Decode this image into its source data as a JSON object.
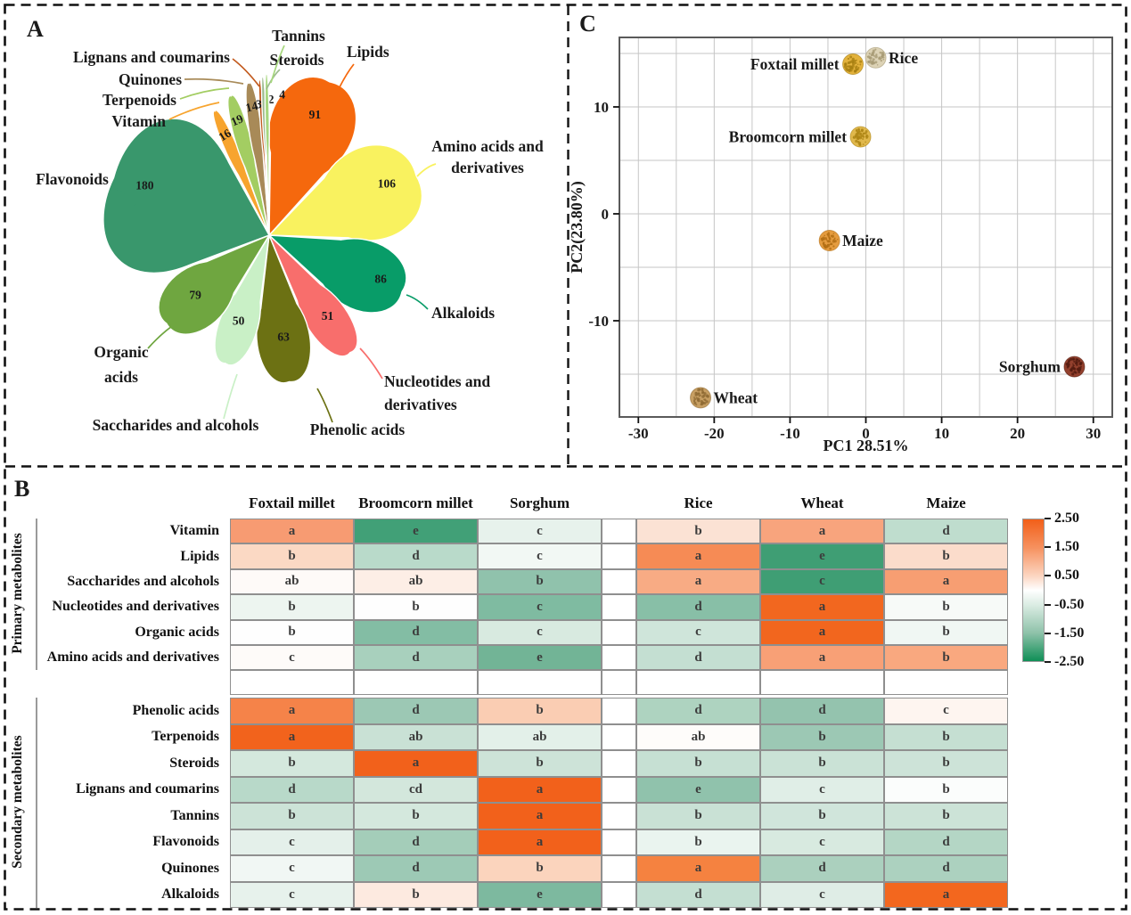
{
  "ui": {
    "panel_labels": {
      "a": "A",
      "b": "B",
      "c": "C"
    }
  },
  "chart_data": [
    {
      "id": "A",
      "type": "pie",
      "variant": "flower-petal-plot",
      "title": "",
      "categories": [
        {
          "name": "Lipids",
          "label_lines": [
            "Lipids"
          ],
          "value": 91,
          "color": "#F5680D"
        },
        {
          "name": "Amino acids and derivatives",
          "label_lines": [
            "Amino acids and",
            "derivatives"
          ],
          "value": 106,
          "color": "#F9F25F"
        },
        {
          "name": "Alkaloids",
          "label_lines": [
            "Alkaloids"
          ],
          "value": 86,
          "color": "#089C68"
        },
        {
          "name": "Nucleotides and derivatives",
          "label_lines": [
            "Nucleotides and",
            "derivatives"
          ],
          "value": 51,
          "color": "#F86E6C"
        },
        {
          "name": "Phenolic acids",
          "label_lines": [
            "Phenolic acids"
          ],
          "value": 63,
          "color": "#6C7113"
        },
        {
          "name": "Saccharides and alcohols",
          "label_lines": [
            "Saccharides and alcohols"
          ],
          "value": 50,
          "color": "#C9F0C6"
        },
        {
          "name": "Organic acids",
          "label_lines": [
            "Organic",
            "acids"
          ],
          "value": 79,
          "color": "#6FA640"
        },
        {
          "name": "Flavonoids",
          "label_lines": [
            "Flavonoids"
          ],
          "value": 180,
          "color": "#39976C"
        },
        {
          "name": "Vitamin",
          "label_lines": [
            "Vitamin"
          ],
          "value": 16,
          "color": "#F7A42E"
        },
        {
          "name": "Terpenoids",
          "label_lines": [
            "Terpenoids"
          ],
          "value": 19,
          "color": "#A3CD62"
        },
        {
          "name": "Quinones",
          "label_lines": [
            "Quinones"
          ],
          "value": 14,
          "color": "#A88A58"
        },
        {
          "name": "Lignans and coumarins",
          "label_lines": [
            "Lignans and coumarins"
          ],
          "value": 3,
          "color": "#C25A1E"
        },
        {
          "name": "Steroids",
          "label_lines": [
            "Steroids"
          ],
          "value": 2,
          "color": "#9DBB8F"
        },
        {
          "name": "Tannins",
          "label_lines": [
            "Tannins"
          ],
          "value": 4,
          "color": "#A6D77D"
        }
      ]
    },
    {
      "id": "B",
      "type": "heatmap",
      "columns": [
        "Foxtail millet",
        "Broomcorn millet",
        "Sorghum",
        "Rice",
        "Wheat",
        "Maize"
      ],
      "row_groups": [
        {
          "label": "Primary metabolites",
          "rows": [
            {
              "label": "Vitamin",
              "cells": [
                {
                  "letter": "a",
                  "color": "#F79B72"
                },
                {
                  "letter": "e",
                  "color": "#41A077"
                },
                {
                  "letter": "c",
                  "color": "#E7F2EC"
                },
                {
                  "letter": "b",
                  "color": "#FBE2D4"
                },
                {
                  "letter": "a",
                  "color": "#F8A47D"
                },
                {
                  "letter": "d",
                  "color": "#BFDDCE"
                }
              ]
            },
            {
              "label": "Lipids",
              "cells": [
                {
                  "letter": "b",
                  "color": "#FBD9C4"
                },
                {
                  "letter": "d",
                  "color": "#B9DACA"
                },
                {
                  "letter": "c",
                  "color": "#F2F8F4"
                },
                {
                  "letter": "a",
                  "color": "#F68B55"
                },
                {
                  "letter": "e",
                  "color": "#3F9E74"
                },
                {
                  "letter": "b",
                  "color": "#FBDCCB"
                }
              ]
            },
            {
              "label": "Saccharides and alcohols",
              "cells": [
                {
                  "letter": "ab",
                  "color": "#FEFAF8"
                },
                {
                  "letter": "ab",
                  "color": "#FDEEE6"
                },
                {
                  "letter": "b",
                  "color": "#90C2AC"
                },
                {
                  "letter": "a",
                  "color": "#F8AB84"
                },
                {
                  "letter": "c",
                  "color": "#3F9E74"
                },
                {
                  "letter": "a",
                  "color": "#F79E72"
                }
              ]
            },
            {
              "label": "Nucleotides and derivatives",
              "cells": [
                {
                  "letter": "b",
                  "color": "#EDF5F0"
                },
                {
                  "letter": "b",
                  "color": "#FEFEFE"
                },
                {
                  "letter": "c",
                  "color": "#7FBBA1"
                },
                {
                  "letter": "d",
                  "color": "#88BFA7"
                },
                {
                  "letter": "a",
                  "color": "#F2671F"
                },
                {
                  "letter": "b",
                  "color": "#F7FAF8"
                }
              ]
            },
            {
              "label": "Organic acids",
              "cells": [
                {
                  "letter": "b",
                  "color": "#FEFEFE"
                },
                {
                  "letter": "d",
                  "color": "#83BDA4"
                },
                {
                  "letter": "c",
                  "color": "#D8EAE0"
                },
                {
                  "letter": "c",
                  "color": "#CFE5DA"
                },
                {
                  "letter": "a",
                  "color": "#F2661E"
                },
                {
                  "letter": "b",
                  "color": "#F0F7F3"
                }
              ]
            },
            {
              "label": "Amino acids and derivatives",
              "cells": [
                {
                  "letter": "c",
                  "color": "#FEFBF9"
                },
                {
                  "letter": "d",
                  "color": "#A8D0BD"
                },
                {
                  "letter": "e",
                  "color": "#72B496"
                },
                {
                  "letter": "d",
                  "color": "#C4DFD2"
                },
                {
                  "letter": "a",
                  "color": "#F8A076"
                },
                {
                  "letter": "b",
                  "color": "#F9A87F"
                }
              ]
            }
          ]
        },
        {
          "label": "Secondary metabolites",
          "rows": [
            {
              "label": "Phenolic acids",
              "cells": [
                {
                  "letter": "a",
                  "color": "#F58349"
                },
                {
                  "letter": "d",
                  "color": "#9CC8B4"
                },
                {
                  "letter": "b",
                  "color": "#FACDB3"
                },
                {
                  "letter": "d",
                  "color": "#AED3C0"
                },
                {
                  "letter": "d",
                  "color": "#94C3AE"
                },
                {
                  "letter": "c",
                  "color": "#FEF5F0"
                }
              ]
            },
            {
              "label": "Terpenoids",
              "cells": [
                {
                  "letter": "a",
                  "color": "#F2631C"
                },
                {
                  "letter": "ab",
                  "color": "#C9E1D5"
                },
                {
                  "letter": "ab",
                  "color": "#E3F0E9"
                },
                {
                  "letter": "ab",
                  "color": "#FEFCFA"
                },
                {
                  "letter": "b",
                  "color": "#9CC8B4"
                },
                {
                  "letter": "b",
                  "color": "#C5DFD2"
                }
              ]
            },
            {
              "label": "Steroids",
              "cells": [
                {
                  "letter": "b",
                  "color": "#D4E8DD"
                },
                {
                  "letter": "a",
                  "color": "#F2611B"
                },
                {
                  "letter": "b",
                  "color": "#CDE3D8"
                },
                {
                  "letter": "b",
                  "color": "#C6E0D3"
                },
                {
                  "letter": "b",
                  "color": "#CAE2D6"
                },
                {
                  "letter": "b",
                  "color": "#CDE3D8"
                }
              ]
            },
            {
              "label": "Lignans and coumarins",
              "cells": [
                {
                  "letter": "d",
                  "color": "#B8D9C9"
                },
                {
                  "letter": "cd",
                  "color": "#D3E7DC"
                },
                {
                  "letter": "a",
                  "color": "#F2611B"
                },
                {
                  "letter": "e",
                  "color": "#90C2AC"
                },
                {
                  "letter": "c",
                  "color": "#E0EEE7"
                },
                {
                  "letter": "b",
                  "color": "#FBFDFC"
                }
              ]
            },
            {
              "label": "Tannins",
              "cells": [
                {
                  "letter": "b",
                  "color": "#CCE3D7"
                },
                {
                  "letter": "b",
                  "color": "#D4E8DD"
                },
                {
                  "letter": "a",
                  "color": "#F2611B"
                },
                {
                  "letter": "b",
                  "color": "#C9E1D5"
                },
                {
                  "letter": "b",
                  "color": "#D0E5DB"
                },
                {
                  "letter": "b",
                  "color": "#CCE3D7"
                }
              ]
            },
            {
              "label": "Flavonoids",
              "cells": [
                {
                  "letter": "c",
                  "color": "#E4F0EA"
                },
                {
                  "letter": "d",
                  "color": "#A4CDB9"
                },
                {
                  "letter": "a",
                  "color": "#F2611B"
                },
                {
                  "letter": "b",
                  "color": "#EAF4EF"
                },
                {
                  "letter": "c",
                  "color": "#D8EAE0"
                },
                {
                  "letter": "d",
                  "color": "#B4D6C5"
                }
              ]
            },
            {
              "label": "Quinones",
              "cells": [
                {
                  "letter": "c",
                  "color": "#F1F7F4"
                },
                {
                  "letter": "d",
                  "color": "#9DC9B5"
                },
                {
                  "letter": "b",
                  "color": "#FBD4BD"
                },
                {
                  "letter": "a",
                  "color": "#F58240"
                },
                {
                  "letter": "d",
                  "color": "#ABD0BE"
                },
                {
                  "letter": "d",
                  "color": "#ACD1BF"
                }
              ]
            },
            {
              "label": "Alkaloids",
              "cells": [
                {
                  "letter": "c",
                  "color": "#E7F2EC"
                },
                {
                  "letter": "b",
                  "color": "#FDEAE0"
                },
                {
                  "letter": "e",
                  "color": "#7DB99F"
                },
                {
                  "letter": "d",
                  "color": "#C4DFD2"
                },
                {
                  "letter": "c",
                  "color": "#DFEDE6"
                },
                {
                  "letter": "a",
                  "color": "#F3671E"
                }
              ]
            }
          ]
        }
      ],
      "colorbar": {
        "tick_labels": [
          "2.50",
          "1.50",
          "0.50",
          "-0.50",
          "-1.50",
          "-2.50"
        ],
        "gradient": [
          "#F25F19",
          "#F6915F",
          "#FCD6C2",
          "#FFFFFF",
          "#DCEDE4",
          "#8FC2AA",
          "#0F8F56"
        ]
      }
    },
    {
      "id": "C",
      "type": "scatter",
      "xlabel": "PC1 28.51%",
      "ylabel": "PC2(23.80%)",
      "xlim": [
        -32.5,
        32.5
      ],
      "ylim": [
        -19,
        16.5
      ],
      "x_ticks": [
        -30,
        -20,
        -10,
        0,
        10,
        20,
        30
      ],
      "y_ticks": [
        10,
        0,
        -10
      ],
      "grid_step": 5,
      "grid": true,
      "points": [
        {
          "label": "Foxtail millet",
          "x": -1.7,
          "y": 14.0,
          "color": "#E3B23C",
          "speckle": "#A87F12",
          "label_side": "left"
        },
        {
          "label": "Rice",
          "x": 1.3,
          "y": 14.6,
          "color": "#DDD3B6",
          "speckle": "#A89B76",
          "label_side": "right"
        },
        {
          "label": "Broomcorn millet",
          "x": -0.7,
          "y": 7.2,
          "color": "#E0B84C",
          "speckle": "#AD8414",
          "label_side": "left"
        },
        {
          "label": "Maize",
          "x": -4.8,
          "y": -2.5,
          "color": "#E59C3F",
          "speckle": "#B26E14",
          "label_side": "right"
        },
        {
          "label": "Sorghum",
          "x": 27.5,
          "y": -14.3,
          "color": "#93402D",
          "speckle": "#541B10",
          "label_side": "left"
        },
        {
          "label": "Wheat",
          "x": -21.8,
          "y": -17.2,
          "color": "#C79F63",
          "speckle": "#8F6A33",
          "label_side": "right"
        }
      ]
    }
  ]
}
